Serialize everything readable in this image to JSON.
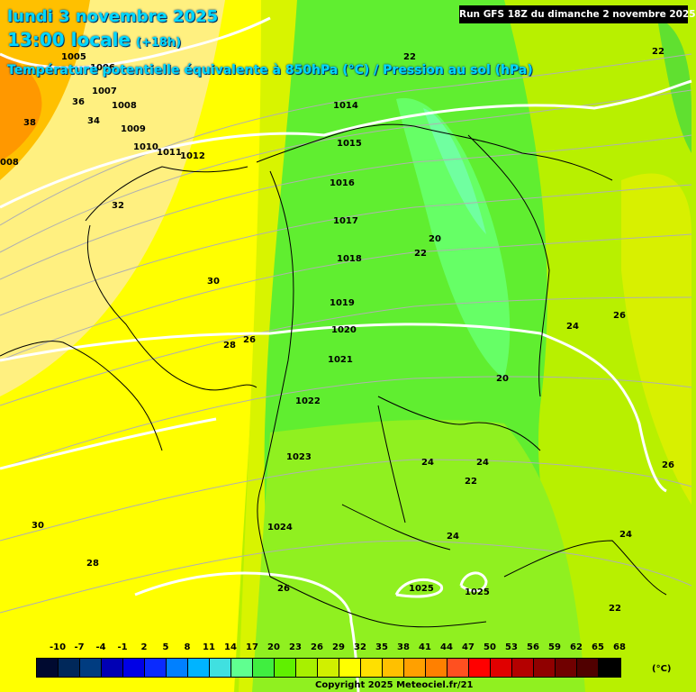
{
  "header": {
    "date": "lundi 3 novembre 2025",
    "time": "13:00 locale",
    "offset": "(+18h)",
    "parameter": "Température potentielle équivalente à 850hPa (°C) / Pression au sol (hPa)",
    "run": "Run GFS 18Z du dimanche 2 novembre 2025"
  },
  "map": {
    "pressure_labels": [
      "1005",
      "1006",
      "1007",
      "1008",
      "1009",
      "1010",
      "1011",
      "1012",
      "1014",
      "1015",
      "1016",
      "1017",
      "1018",
      "1019",
      "1020",
      "1021",
      "1022",
      "1023",
      "1024",
      "1025",
      "1025"
    ],
    "temperature_labels": [
      "38",
      "36",
      "34",
      "32",
      "30",
      "28",
      "26",
      "22",
      "22",
      "22",
      "20",
      "20",
      "24",
      "26",
      "24",
      "24",
      "22",
      "24",
      "24",
      "22",
      "30",
      "28",
      "26",
      "26",
      "008"
    ]
  },
  "legend": {
    "ticks": [
      "-10",
      "-7",
      "-4",
      "-1",
      "2",
      "5",
      "8",
      "11",
      "14",
      "17",
      "20",
      "23",
      "26",
      "29",
      "32",
      "35",
      "38",
      "41",
      "44",
      "47",
      "50",
      "53",
      "56",
      "59",
      "62",
      "65",
      "68"
    ],
    "colors": [
      "#000a30",
      "#00285a",
      "#003c80",
      "#0000b4",
      "#0000e6",
      "#0a2aff",
      "#0080ff",
      "#00b4ff",
      "#40e0e0",
      "#60ff90",
      "#40ee40",
      "#60f000",
      "#a8f000",
      "#d0f000",
      "#ffff00",
      "#ffe000",
      "#ffc000",
      "#ffa000",
      "#ff8000",
      "#ff5020",
      "#ff0000",
      "#e00000",
      "#b40000",
      "#900000",
      "#700000",
      "#500000",
      "#000000"
    ],
    "unit": "(°C)"
  },
  "copyright": "Copyright 2025 Meteociel.fr/21"
}
